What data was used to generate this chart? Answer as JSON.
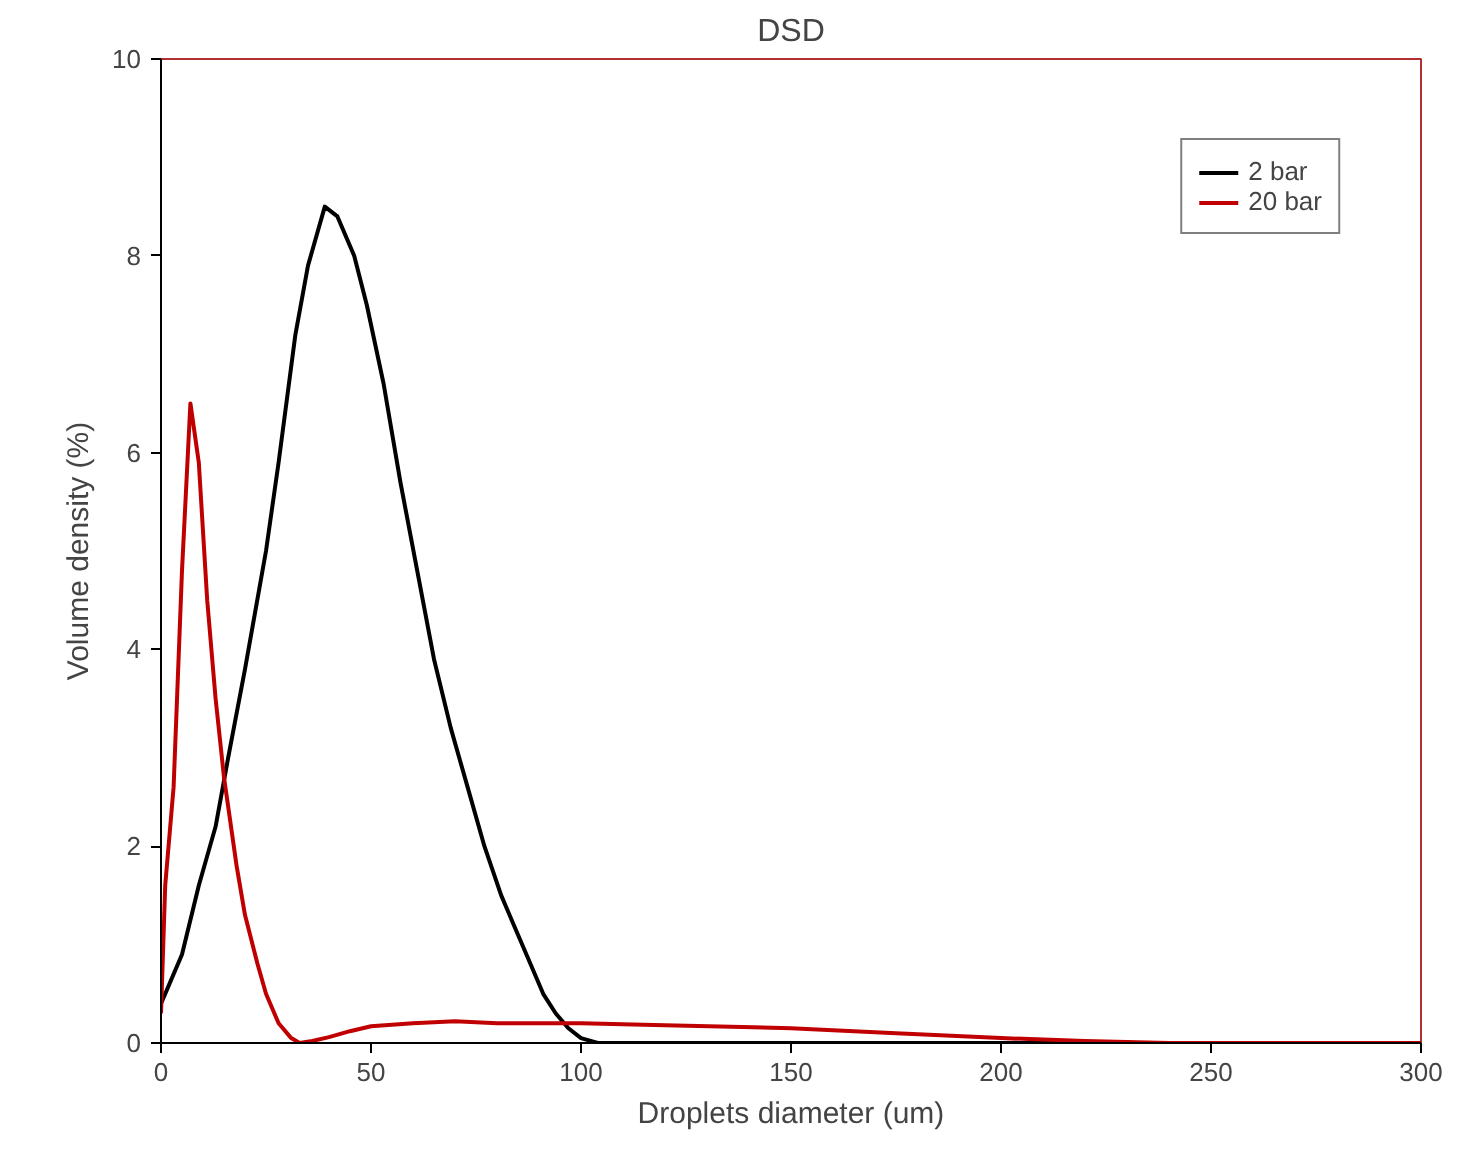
{
  "chart_data": {
    "type": "line",
    "title": "DSD",
    "xlabel": "Droplets diameter (um)",
    "ylabel": "Volume density (%)",
    "xlim": [
      0,
      300
    ],
    "ylim": [
      0,
      10
    ],
    "xticks": [
      0,
      50,
      100,
      150,
      200,
      250,
      300
    ],
    "yticks": [
      0,
      2,
      4,
      6,
      8,
      10
    ],
    "grid": false,
    "legend": "top right",
    "line_style": "solid",
    "marker": "none",
    "series": [
      {
        "name": "2 bar",
        "color": "#000000",
        "x": [
          0,
          5,
          9,
          13,
          16,
          20,
          25,
          28,
          32,
          35,
          39,
          42,
          46,
          49,
          53,
          57,
          61,
          65,
          69,
          73,
          77,
          81,
          84,
          88,
          91,
          94,
          97,
          100,
          104,
          120,
          150,
          200,
          250,
          280
        ],
        "values": [
          0.4,
          0.9,
          1.6,
          2.2,
          2.9,
          3.8,
          5.0,
          5.9,
          7.2,
          7.9,
          8.5,
          8.4,
          8.0,
          7.5,
          6.7,
          5.7,
          4.8,
          3.9,
          3.2,
          2.6,
          2.0,
          1.5,
          1.2,
          0.8,
          0.5,
          0.3,
          0.15,
          0.05,
          0,
          0,
          0,
          0,
          0,
          0
        ]
      },
      {
        "name": "20 bar",
        "color": "#c00000",
        "x": [
          0,
          1,
          3,
          5,
          7,
          9,
          11,
          13,
          15,
          18,
          20,
          23,
          25,
          28,
          31,
          33,
          36,
          40,
          45,
          50,
          60,
          70,
          80,
          100,
          120,
          150,
          175,
          200,
          220,
          240,
          270,
          300
        ],
        "values": [
          0.3,
          1.6,
          2.6,
          4.8,
          6.5,
          5.9,
          4.5,
          3.5,
          2.7,
          1.8,
          1.3,
          0.8,
          0.5,
          0.2,
          0.05,
          0.0,
          0.02,
          0.06,
          0.12,
          0.17,
          0.2,
          0.22,
          0.2,
          0.2,
          0.18,
          0.15,
          0.1,
          0.05,
          0.02,
          0,
          0,
          0
        ]
      }
    ]
  }
}
